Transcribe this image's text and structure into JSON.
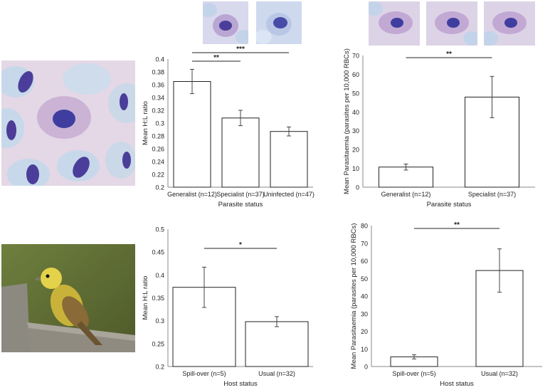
{
  "chart_data": [
    {
      "type": "bar",
      "categories": [
        "Generalist (n=12)",
        "Specialist (n=37)",
        "Uninfected (n=47)"
      ],
      "values": [
        0.365,
        0.308,
        0.287
      ],
      "errors": [
        0.019,
        0.012,
        0.007
      ],
      "xlabel": "Parasite status",
      "ylabel": "Mean H:L ratio",
      "ylim": [
        0.2,
        0.4
      ],
      "yticks": [
        "0.2",
        "0.22",
        "0.24",
        "0.26",
        "0.28",
        "0.3",
        "0.32",
        "0.34",
        "0.36",
        "0.38",
        "0.4"
      ],
      "significance": [
        {
          "from": 0,
          "to": 1,
          "label": "**"
        },
        {
          "from": 0,
          "to": 2,
          "label": "***"
        }
      ]
    },
    {
      "type": "bar",
      "categories": [
        "Generalist (n=12)",
        "Specialist (n=37)"
      ],
      "values": [
        10.7,
        47.9
      ],
      "errors": [
        1.6,
        11.0
      ],
      "xlabel": "Parasite status",
      "ylabel": "Mean Parasitaemia (parasites per 10,000 RBCs)",
      "ylim": [
        0,
        70
      ],
      "yticks": [
        "0",
        "10",
        "20",
        "30",
        "40",
        "50",
        "60",
        "70"
      ],
      "significance": [
        {
          "from": 0,
          "to": 1,
          "label": "**"
        }
      ]
    },
    {
      "type": "bar",
      "categories": [
        "Spill-over (n=5)",
        "Usual (n=32)"
      ],
      "values": [
        0.373,
        0.298
      ],
      "errors": [
        0.044,
        0.011
      ],
      "xlabel": "Host status",
      "ylabel": "Mean H:L ratio",
      "ylim": [
        0.2,
        0.5
      ],
      "yticks": [
        "0.2",
        "0.25",
        "0.3",
        "0.35",
        "0.4",
        "0.45",
        "0.5"
      ],
      "significance": [
        {
          "from": 0,
          "to": 1,
          "label": "*"
        }
      ]
    },
    {
      "type": "bar",
      "categories": [
        "Spill-over (n=5)",
        "Usual (n=32)"
      ],
      "values": [
        5.5,
        54.5
      ],
      "errors": [
        1.2,
        12.3
      ],
      "xlabel": "Host status",
      "ylabel": "Mean Parasitaemia (parasites per 10,000 RBCs)",
      "ylim": [
        0,
        80
      ],
      "yticks": [
        "0",
        "10",
        "20",
        "30",
        "40",
        "50",
        "60",
        "70",
        "80"
      ],
      "significance": [
        {
          "from": 0,
          "to": 1,
          "label": "**"
        }
      ]
    }
  ]
}
